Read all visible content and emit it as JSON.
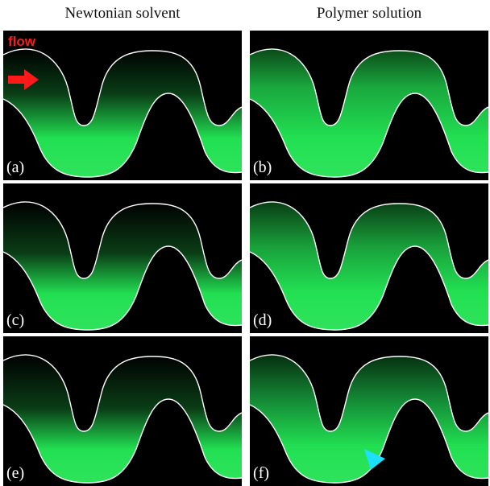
{
  "columns": {
    "left": "Newtonian solvent",
    "right": "Polymer solution"
  },
  "flow_label": "flow",
  "panels": [
    {
      "label": "(a)",
      "fluid": "newtonian"
    },
    {
      "label": "(b)",
      "fluid": "polymer"
    },
    {
      "label": "(c)",
      "fluid": "newtonian"
    },
    {
      "label": "(d)",
      "fluid": "polymer"
    },
    {
      "label": "(e)",
      "fluid": "newtonian"
    },
    {
      "label": "(f)",
      "fluid": "polymer"
    }
  ],
  "colors": {
    "background": "#000000",
    "fluorescence": "#22e052",
    "wall": "#ffffff",
    "flow_arrow": "#ff1a1a",
    "marker": "#1de0ff"
  },
  "icons": {
    "flow_arrow": "right-arrow-icon",
    "marker": "triangle-marker-icon"
  }
}
